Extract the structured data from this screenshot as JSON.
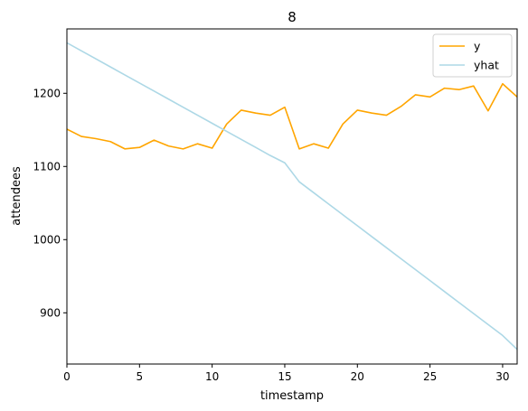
{
  "chart_data": {
    "type": "line",
    "title": "8",
    "xlabel": "timestamp",
    "ylabel": "attendees",
    "xlim": [
      0,
      31
    ],
    "ylim": [
      830,
      1288
    ],
    "xticks": [
      0,
      5,
      10,
      15,
      20,
      25,
      30
    ],
    "yticks": [
      900,
      1000,
      1100,
      1200
    ],
    "grid": false,
    "legend_position": "top-right",
    "x": [
      0,
      1,
      2,
      3,
      4,
      5,
      6,
      7,
      8,
      9,
      10,
      11,
      12,
      13,
      14,
      15,
      16,
      17,
      18,
      19,
      20,
      21,
      22,
      23,
      24,
      25,
      26,
      27,
      28,
      29,
      30,
      31
    ],
    "series": [
      {
        "name": "y",
        "color": "#ffa500",
        "values": [
          1151,
          1141,
          1138,
          1134,
          1124,
          1126,
          1136,
          1128,
          1124,
          1131,
          1125,
          1158,
          1177,
          1173,
          1170,
          1181,
          1124,
          1131,
          1125,
          1158,
          1177,
          1173,
          1170,
          1182,
          1198,
          1195,
          1207,
          1205,
          1210,
          1176,
          1213,
          1195
        ]
      },
      {
        "name": "yhat",
        "color": "#add8e6",
        "values": [
          1269,
          1258,
          1247,
          1236,
          1225,
          1214,
          1203,
          1192,
          1181,
          1170,
          1159,
          1148,
          1137,
          1126,
          1115,
          1105,
          1079,
          1064,
          1049,
          1034,
          1019,
          1004,
          989,
          974,
          959,
          944,
          929,
          914,
          899,
          884,
          869,
          850
        ]
      }
    ]
  }
}
